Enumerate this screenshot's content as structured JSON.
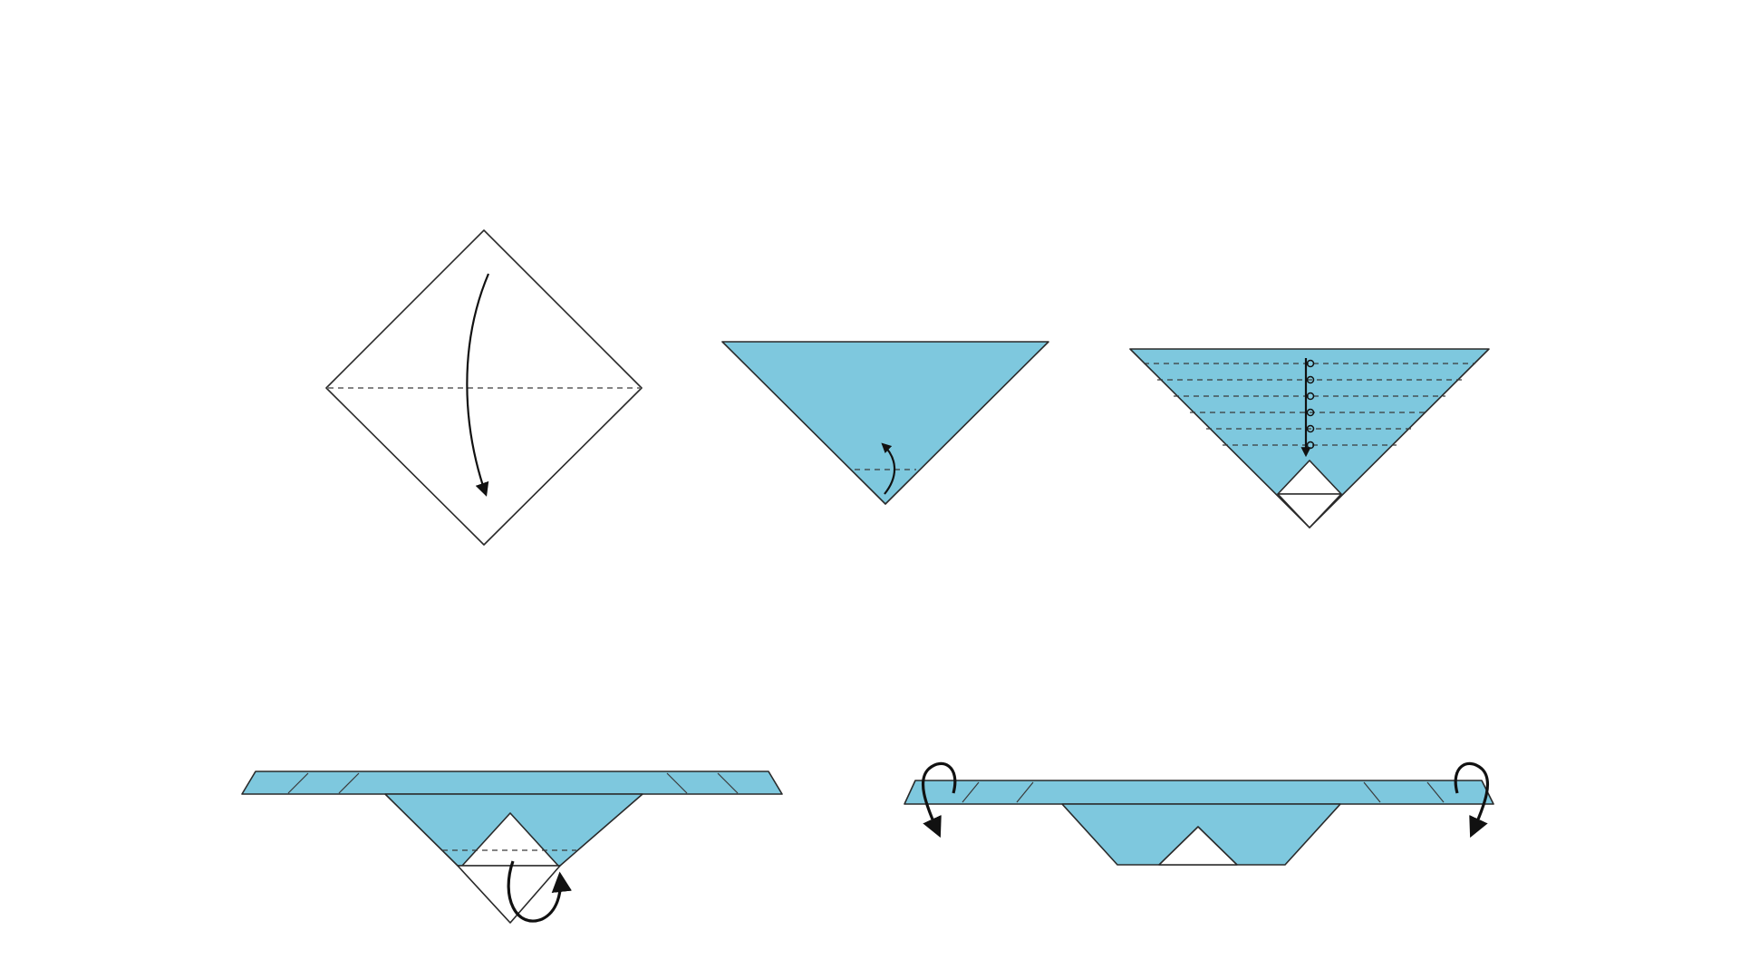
{
  "diagram": {
    "kind": "origami-fold-instructions",
    "steps_shown": 5,
    "colors": {
      "paper_blue": "#7ec8de",
      "paper_white": "#ffffff",
      "line": "#2a2a2a",
      "arrow": "#111111"
    },
    "icons": [
      "fold-down-arrow-icon",
      "fold-up-arrow-icon",
      "pleat-fold-arrow-icon",
      "fold-behind-arrow-icon",
      "fold-sides-back-arrow-icon"
    ]
  }
}
